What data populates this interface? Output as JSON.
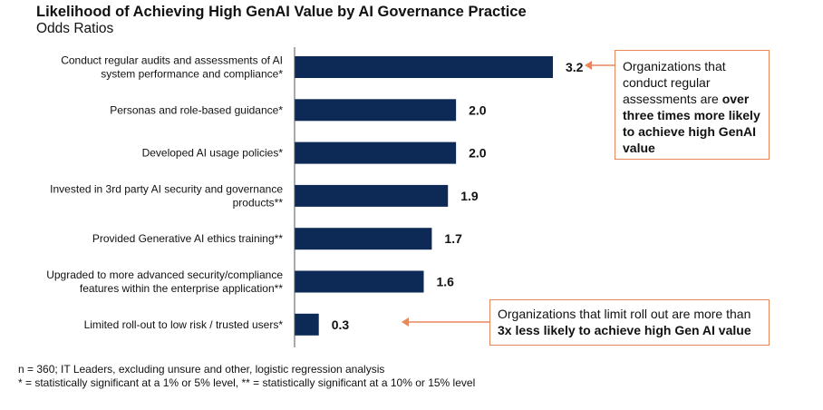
{
  "chart_data": {
    "type": "bar",
    "orientation": "horizontal",
    "title": "Likelihood of Achieving High GenAI Value by AI Governance Practice",
    "subtitle": "Odds Ratios",
    "categories": [
      "Conduct regular audits and assessments of AI system performance and compliance*",
      "Personas and role-based guidance*",
      "Developed AI usage policies*",
      "Invested in 3rd party AI security and governance products**",
      "Provided Generative AI ethics training**",
      "Upgraded to more advanced security/compliance features within the enterprise application**",
      "Limited roll-out to low risk / trusted users*"
    ],
    "category_lines": [
      [
        "Conduct regular audits and assessments of AI",
        "system performance and compliance*"
      ],
      [
        "Personas and role-based guidance*"
      ],
      [
        "Developed AI usage policies*"
      ],
      [
        "Invested in 3rd party AI security and governance",
        "products**"
      ],
      [
        "Provided Generative AI ethics training**"
      ],
      [
        "Upgraded to more advanced security/compliance",
        "features within the enterprise application**"
      ],
      [
        "Limited roll-out to low risk / trusted users*"
      ]
    ],
    "values": [
      3.2,
      2.0,
      2.0,
      1.9,
      1.7,
      1.6,
      0.3
    ],
    "data_labels": [
      "3.2",
      "2.0",
      "2.0",
      "1.9",
      "1.7",
      "1.6",
      "0.3"
    ],
    "xlim": [
      0,
      3.2
    ],
    "grid": false,
    "bar_color": "#0d2a56",
    "annotation_color": "#e8875a",
    "annotations": [
      {
        "target": "3.2",
        "text_plain": "Organizations that conduct regular assessments are ",
        "text_bold": "over three times more likely to achieve high GenAI value"
      },
      {
        "target": "0.3",
        "text_plain": "Organizations that limit roll out are more than ",
        "text_bold": "3x less likely to achieve high Gen AI value"
      }
    ]
  },
  "footnotes": [
    "n = 360; IT Leaders, excluding unsure and other, logistic regression analysis",
    "* = statistically significant at a 1% or 5% level, ** = statistically significant at a 10% or 15% level"
  ]
}
